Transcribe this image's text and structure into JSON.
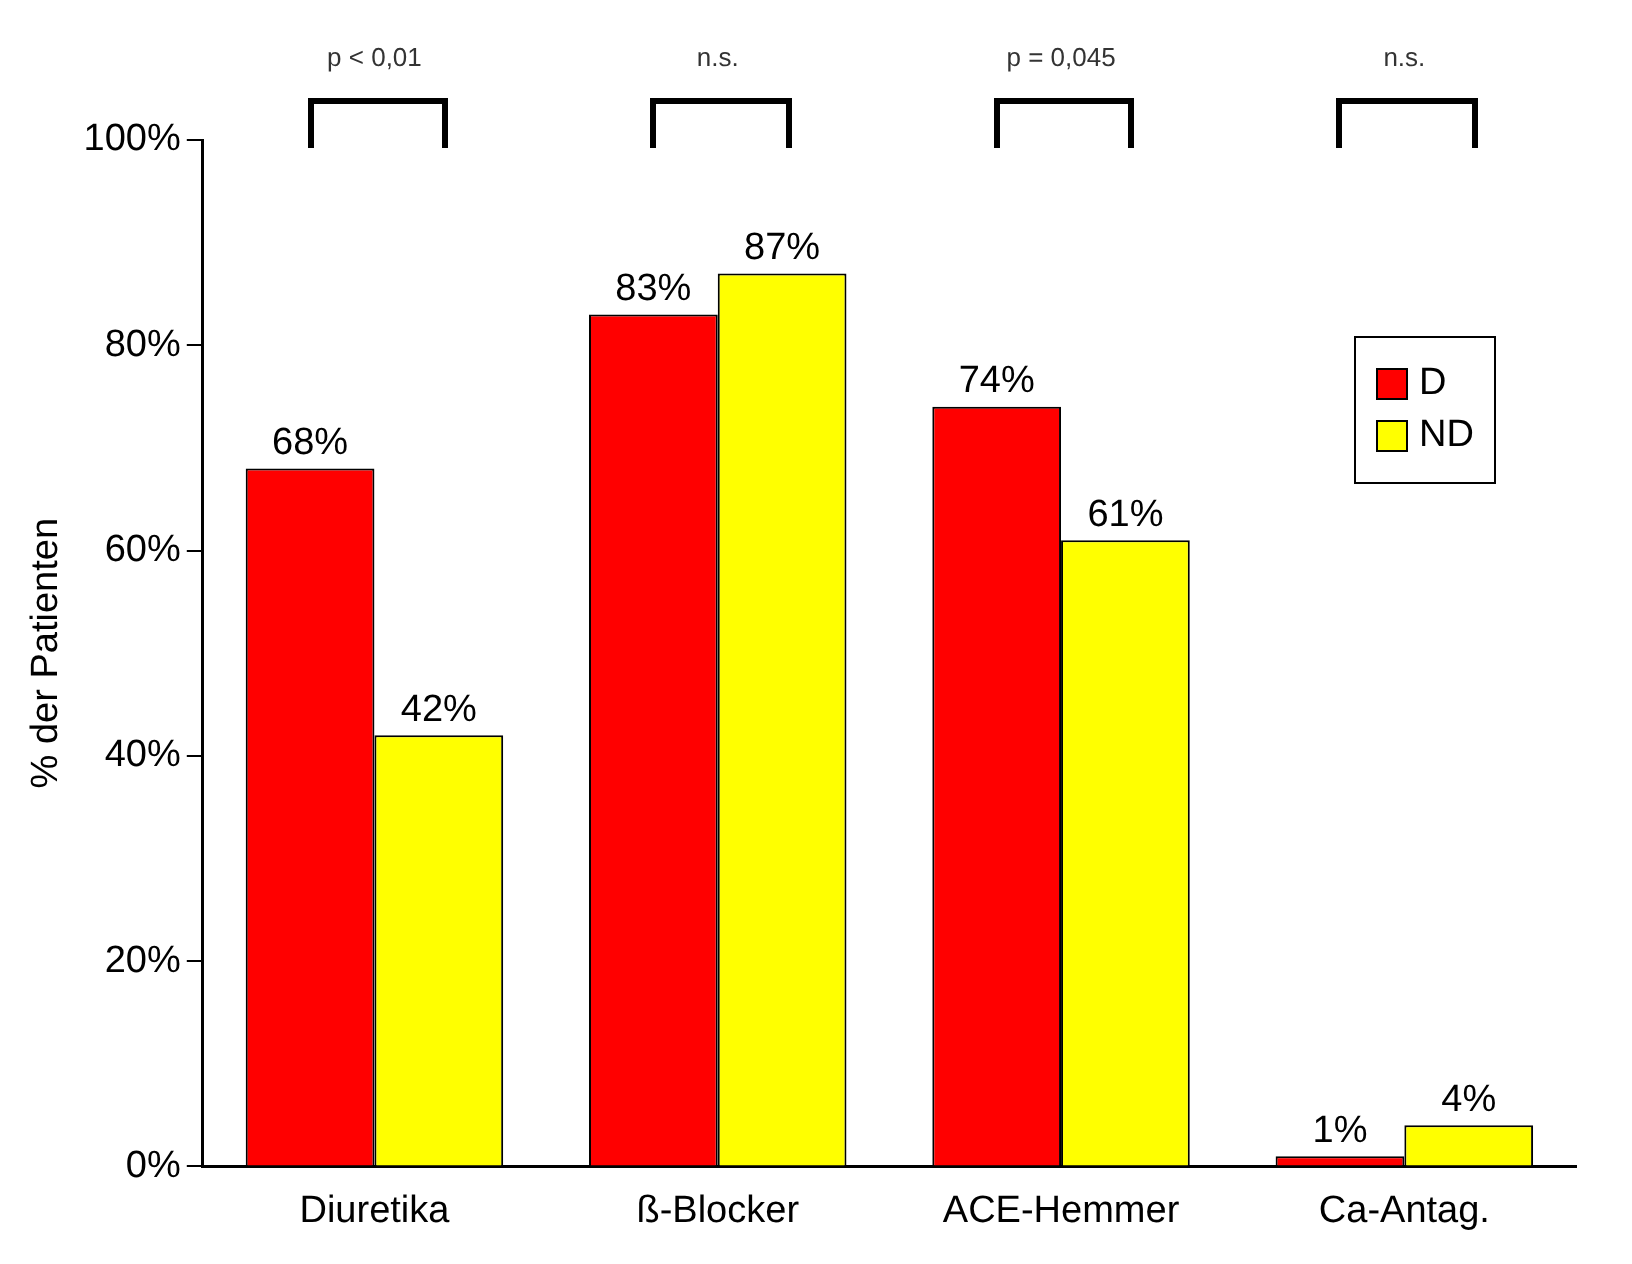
{
  "chart_data": {
    "type": "bar",
    "ylabel": "% der Patienten",
    "categories": [
      "Diuretika",
      "ß-Blocker",
      "ACE-Hemmer",
      "Ca-Antag."
    ],
    "series": [
      {
        "name": "D",
        "color": "#ff0000",
        "values": [
          68,
          83,
          74,
          1
        ],
        "value_labels": [
          "68%",
          "83%",
          "74%",
          "1%"
        ]
      },
      {
        "name": "ND",
        "color": "#ffff00",
        "values": [
          42,
          87,
          61,
          4
        ],
        "value_labels": [
          "42%",
          "87%",
          "61%",
          "4%"
        ]
      }
    ],
    "ylim": [
      0,
      100
    ],
    "yticks": [
      {
        "value": 0,
        "label": "0%"
      },
      {
        "value": 20,
        "label": "20%"
      },
      {
        "value": 40,
        "label": "40%"
      },
      {
        "value": 60,
        "label": "60%"
      },
      {
        "value": 80,
        "label": "80%"
      },
      {
        "value": 100,
        "label": "100%"
      }
    ],
    "grid": false,
    "legend": "top right",
    "annotations": [
      "p < 0,01",
      "n.s.",
      "p = 0,045",
      "n.s."
    ]
  }
}
